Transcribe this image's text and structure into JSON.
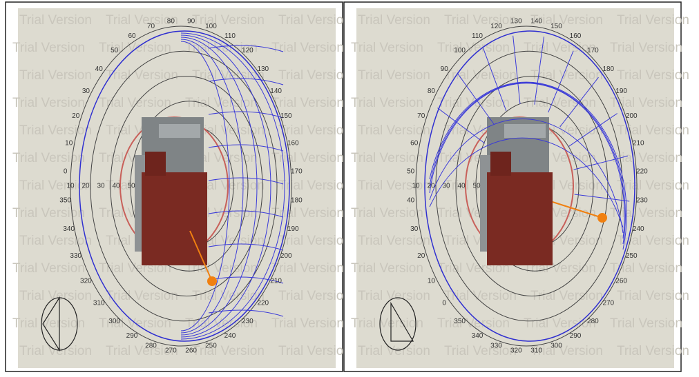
{
  "watermark": "Trial Version",
  "panels": [
    {
      "azimuth_labels": [
        "60",
        "70",
        "80",
        "90",
        "100",
        "110",
        "120",
        "130",
        "140",
        "150",
        "160",
        "170",
        "180",
        "190",
        "200",
        "210",
        "220",
        "230",
        "240",
        "250",
        "260",
        "270",
        "280",
        "290",
        "300",
        "310",
        "320",
        "330",
        "340",
        "350",
        "0",
        "10",
        "20",
        "30",
        "40",
        "50"
      ],
      "ring_labels": [
        "10",
        "20",
        "30",
        "40",
        "50"
      ]
    },
    {
      "azimuth_labels": [
        "110",
        "120",
        "130",
        "140",
        "150",
        "160",
        "170",
        "180",
        "190",
        "200",
        "210",
        "220",
        "230",
        "240",
        "250",
        "260",
        "270",
        "280",
        "290",
        "300",
        "310",
        "320",
        "330",
        "340",
        "350",
        "0",
        "10",
        "20",
        "30",
        "40",
        "50",
        "60",
        "70",
        "80",
        "90",
        "100"
      ],
      "ring_labels": [
        "10",
        "20",
        "30",
        "40",
        "50"
      ]
    }
  ]
}
